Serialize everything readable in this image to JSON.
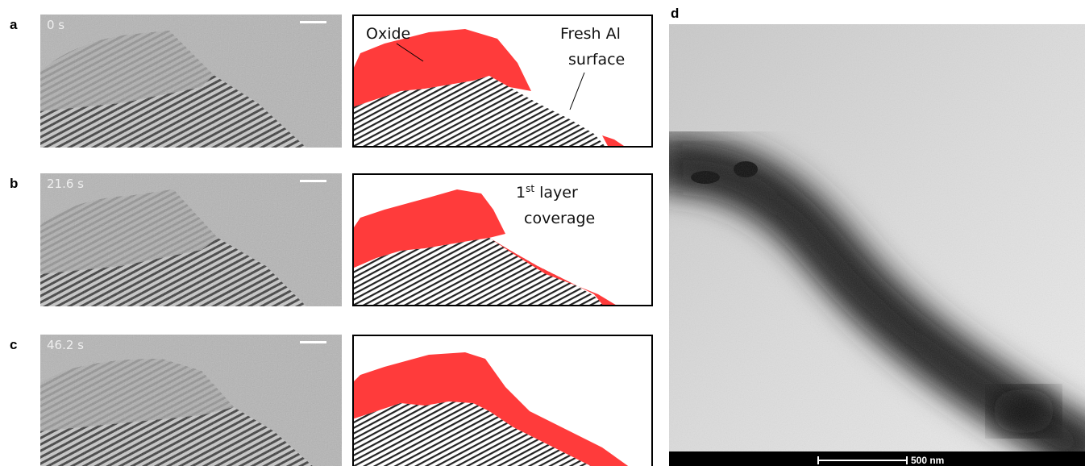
{
  "panels": [
    {
      "label": "a",
      "time": "0 s"
    },
    {
      "label": "b",
      "time": "21.6 s"
    },
    {
      "label": "c",
      "time": "46.2 s"
    }
  ],
  "annotations": {
    "oxide": "Oxide",
    "fresh_al": [
      "Fresh Al",
      "surface"
    ],
    "coverage": {
      "number": "1",
      "sup": "st",
      "rest": " layer",
      "line2": "coverage"
    }
  },
  "panel_d": {
    "label": "d",
    "scale_bar": "500 nm"
  }
}
